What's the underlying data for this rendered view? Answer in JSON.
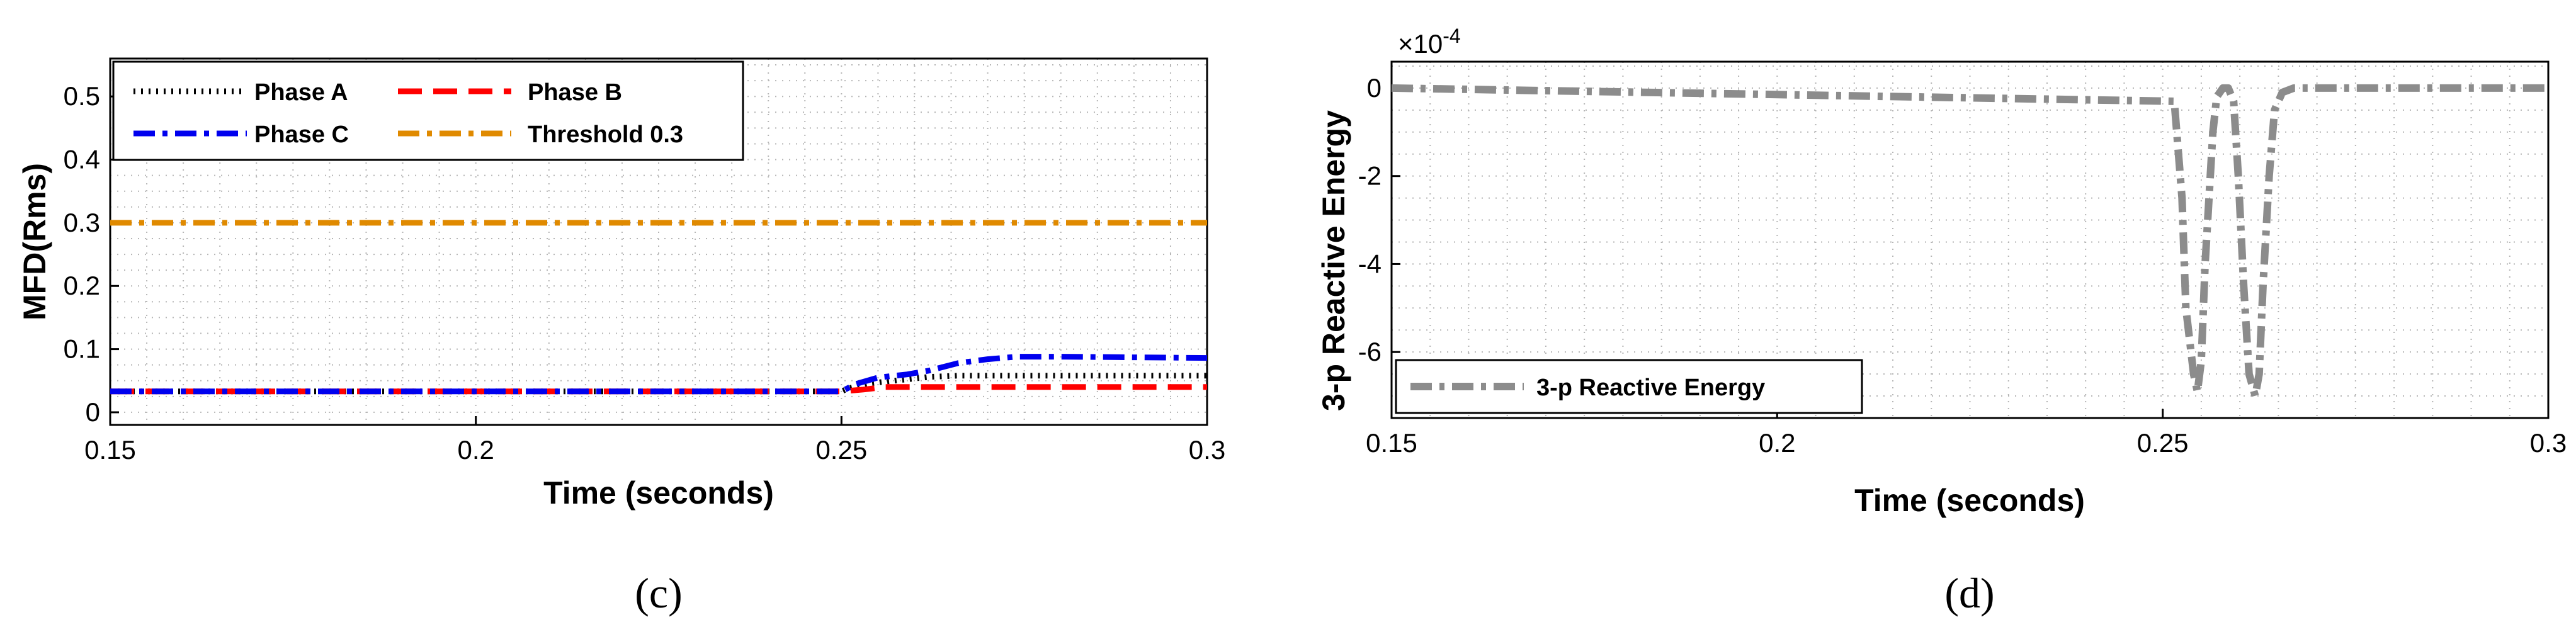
{
  "chart_data": [
    {
      "type": "line",
      "caption": "(c)",
      "xlabel": "Time (seconds)",
      "ylabel": "MFD(Rms)",
      "xlim": [
        0.15,
        0.3
      ],
      "ylim": [
        -0.02,
        0.56
      ],
      "xticks": [
        "0.15",
        "0.2",
        "0.25",
        "0.3"
      ],
      "yticks": [
        "0",
        "0.1",
        "0.2",
        "0.3",
        "0.4",
        "0.5"
      ],
      "grid": true,
      "legend_position": "top-left",
      "series": [
        {
          "name": "Phase A",
          "color": "#000000",
          "dash": "dotted",
          "x": [
            0.15,
            0.25,
            0.251,
            0.254,
            0.258,
            0.262,
            0.266,
            0.3
          ],
          "y": [
            0.033,
            0.033,
            0.038,
            0.046,
            0.051,
            0.056,
            0.058,
            0.058
          ]
        },
        {
          "name": "Phase B",
          "color": "#ff0000",
          "dash": "dashed",
          "x": [
            0.15,
            0.25,
            0.253,
            0.256,
            0.3
          ],
          "y": [
            0.033,
            0.033,
            0.036,
            0.04,
            0.04
          ]
        },
        {
          "name": "Phase C",
          "color": "#0000ee",
          "dash": "dashdot",
          "x": [
            0.15,
            0.25,
            0.252,
            0.255,
            0.259,
            0.262,
            0.266,
            0.27,
            0.274,
            0.28,
            0.3
          ],
          "y": [
            0.033,
            0.033,
            0.045,
            0.055,
            0.06,
            0.066,
            0.078,
            0.084,
            0.088,
            0.088,
            0.086
          ]
        },
        {
          "name": "Threshold 0.3",
          "color": "#e08a00",
          "dash": "dashdot",
          "x": [
            0.15,
            0.3
          ],
          "y": [
            0.3,
            0.3
          ]
        }
      ]
    },
    {
      "type": "line",
      "caption": "(d)",
      "xlabel": "Time (seconds)",
      "ylabel": "3-p Reactive Energy",
      "exponent_label": "×10",
      "exponent_power": "-4",
      "xlim": [
        0.15,
        0.3
      ],
      "ylim": [
        -7.5,
        0.6
      ],
      "xticks": [
        "0.15",
        "0.2",
        "0.25",
        "0.3"
      ],
      "yticks": [
        "0",
        "-2",
        "-4",
        "-6"
      ],
      "grid": true,
      "legend_position": "bottom-left",
      "series": [
        {
          "name": "3-p Reactive Energy",
          "color": "#8c8c8c",
          "dash": "dashdot",
          "x": [
            0.15,
            0.2515,
            0.2525,
            0.253,
            0.254,
            0.2545,
            0.255,
            0.2555,
            0.2565,
            0.257,
            0.2578,
            0.2585,
            0.2592,
            0.2598,
            0.2605,
            0.2612,
            0.262,
            0.2625,
            0.263,
            0.2638,
            0.2645,
            0.2655,
            0.267,
            0.3
          ],
          "y": [
            0,
            -0.3,
            -2.5,
            -5.0,
            -6.5,
            -6.9,
            -6.2,
            -4.0,
            -1.0,
            -0.2,
            0,
            0,
            -0.3,
            -2.0,
            -4.5,
            -6.5,
            -7.0,
            -6.5,
            -4.5,
            -2.0,
            -0.5,
            -0.1,
            0,
            0
          ]
        }
      ]
    }
  ]
}
